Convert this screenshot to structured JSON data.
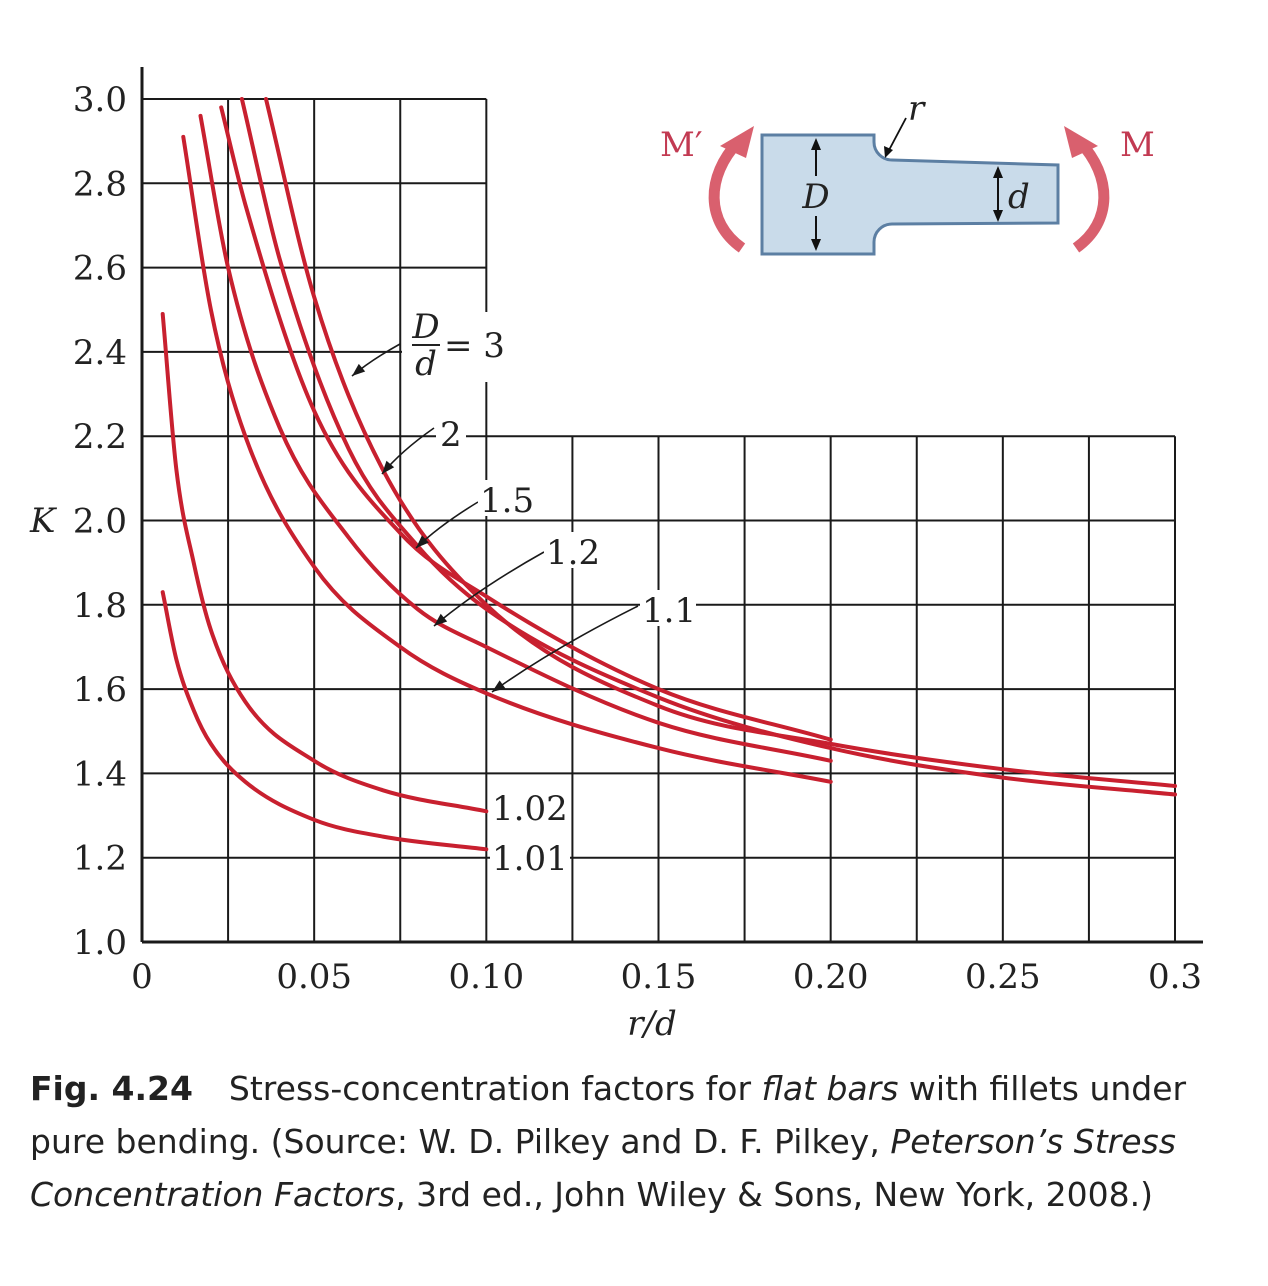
{
  "chart_data": {
    "type": "line",
    "xlabel": "r/d",
    "ylabel": "K",
    "xlim": [
      0,
      0.3
    ],
    "ylim": [
      1.0,
      3.0
    ],
    "grid": true,
    "x_ticks": [
      "0",
      "0.05",
      "0.10",
      "0.15",
      "0.20",
      "0.25",
      "0.3"
    ],
    "y_ticks": [
      "1.0",
      "1.2",
      "1.4",
      "1.6",
      "1.8",
      "2.0",
      "2.2",
      "2.4",
      "2.6",
      "2.8",
      "3.0"
    ],
    "series": [
      {
        "name": "D/d = 3",
        "x": [
          0.036,
          0.05,
          0.07,
          0.1,
          0.15,
          0.2,
          0.25,
          0.3
        ],
        "y": [
          3.0,
          2.53,
          2.12,
          1.8,
          1.56,
          1.47,
          1.41,
          1.37
        ]
      },
      {
        "name": "2",
        "x": [
          0.029,
          0.04,
          0.06,
          0.08,
          0.1,
          0.15,
          0.2,
          0.25,
          0.3
        ],
        "y": [
          3.0,
          2.62,
          2.17,
          1.94,
          1.79,
          1.58,
          1.46,
          1.39,
          1.35
        ]
      },
      {
        "name": "1.5",
        "x": [
          0.023,
          0.03,
          0.05,
          0.075,
          0.1,
          0.15,
          0.2
        ],
        "y": [
          2.98,
          2.75,
          2.26,
          1.97,
          1.82,
          1.6,
          1.48
        ]
      },
      {
        "name": "1.2",
        "x": [
          0.017,
          0.025,
          0.04,
          0.06,
          0.08,
          0.1,
          0.15,
          0.2
        ],
        "y": [
          2.96,
          2.6,
          2.22,
          1.96,
          1.79,
          1.7,
          1.52,
          1.43
        ]
      },
      {
        "name": "1.1",
        "x": [
          0.012,
          0.02,
          0.03,
          0.05,
          0.075,
          0.1,
          0.15,
          0.2
        ],
        "y": [
          2.91,
          2.5,
          2.2,
          1.89,
          1.7,
          1.59,
          1.46,
          1.38
        ]
      },
      {
        "name": "1.02",
        "x": [
          0.006,
          0.01,
          0.015,
          0.02,
          0.03,
          0.05,
          0.07,
          0.1
        ],
        "y": [
          2.49,
          2.12,
          1.9,
          1.74,
          1.57,
          1.43,
          1.36,
          1.31
        ]
      },
      {
        "name": "1.01",
        "x": [
          0.006,
          0.01,
          0.015,
          0.02,
          0.03,
          0.05,
          0.07,
          0.1
        ],
        "y": [
          1.83,
          1.67,
          1.55,
          1.47,
          1.38,
          1.29,
          1.25,
          1.22
        ]
      }
    ],
    "labels": {
      "dd_numerator": "D",
      "dd_denominator": "d",
      "dd_value": "= 3"
    },
    "inset": {
      "moment_left": "M′",
      "moment_right": "M",
      "dim_D": "D",
      "dim_d": "d",
      "radius": "r"
    }
  },
  "caption": {
    "fig_num": "Fig. 4.24",
    "text1": "Stress-concentration factors for ",
    "ital1": "flat bars",
    "text2": " with fillets under pure bending. (Source: W. D. Pilkey and D. F. Pilkey, ",
    "ital2": "Peterson’s Stress Concentration Factors",
    "text3": ", 3rd ed., John Wiley & Sons, New York, 2008.)"
  },
  "colors": {
    "curve": "#c8202f",
    "moment": "#d9606e",
    "bar_fill": "#c9dbea",
    "bar_stroke": "#5c7fa3"
  }
}
